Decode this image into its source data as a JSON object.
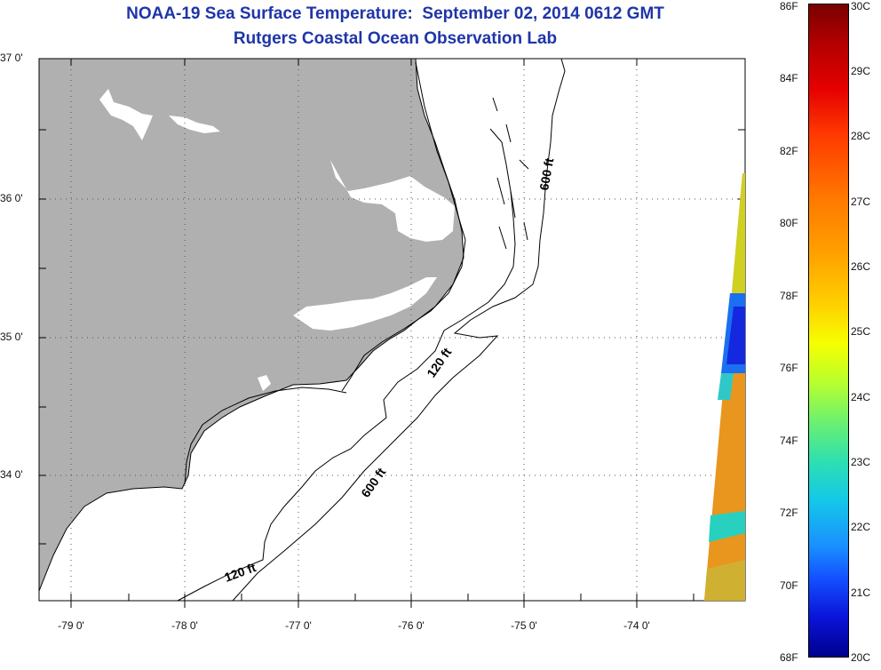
{
  "title_line1": "NOAA-19 Sea Surface Temperature:  September 02, 2014 0612 GMT",
  "title_line2": "Rutgers Coastal Ocean Observation Lab",
  "lat_labels": [
    "37 0'",
    "36 0'",
    "35 0'",
    "34 0'"
  ],
  "lon_labels": [
    "-79 0'",
    "-78 0'",
    "-77 0'",
    "-76 0'",
    "-75 0'",
    "-74 0'"
  ],
  "contour_labels": {
    "c600_north": "600 ft",
    "c120_mid": "120 ft",
    "c600_south": "600 ft",
    "c120_south": "120 ft"
  },
  "colorbar": {
    "fahrenheit": [
      "86F",
      "84F",
      "82F",
      "80F",
      "78F",
      "76F",
      "74F",
      "72F",
      "70F",
      "68F"
    ],
    "celsius": [
      "30C",
      "29C",
      "28C",
      "27C",
      "26C",
      "25C",
      "24C",
      "23C",
      "22C",
      "21C",
      "20C"
    ]
  },
  "colors": {
    "title": "#1f35a8",
    "land": "#b0b0b0",
    "sst_warm": "#e8961e",
    "sst_cold": "#1428e0"
  }
}
